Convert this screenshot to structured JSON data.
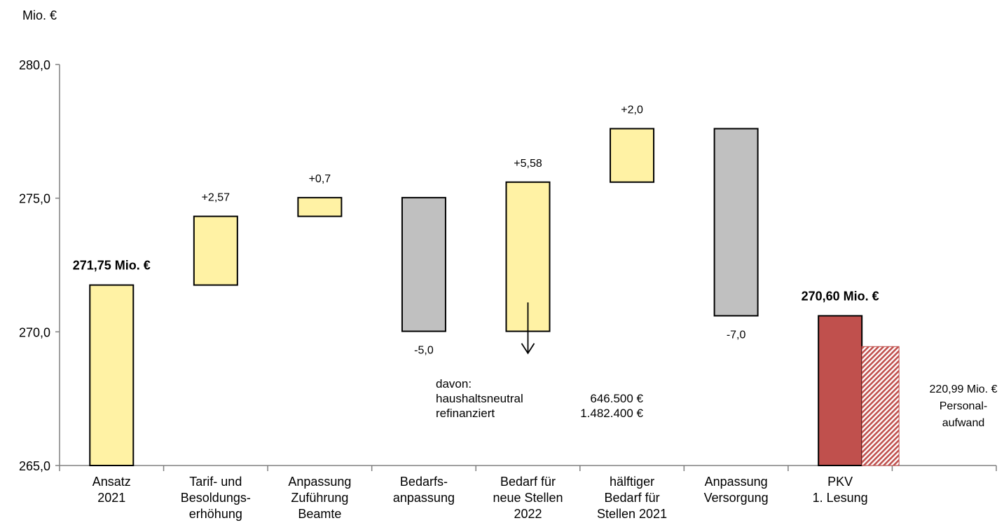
{
  "unit_label": "Mio. €",
  "chart_data": {
    "type": "bar",
    "subtype": "waterfall",
    "ylim": [
      265.0,
      280.0
    ],
    "yticks": [
      "265,0",
      "270,0",
      "275,0",
      "280,0"
    ],
    "ytick_values": [
      265,
      270,
      275,
      280
    ],
    "grid": false,
    "bars": [
      {
        "category": "Ansatz\n2021",
        "base": 265.0,
        "top": 271.75,
        "color": "#FFF2A4",
        "label": "271,75 Mio. €",
        "label_bold": true,
        "label_pos": "above"
      },
      {
        "category": "Tarif- und\nBesoldungs-\nerhöhung",
        "base": 271.75,
        "top": 274.32,
        "color": "#FFF2A4",
        "label": "+2,57",
        "label_bold": false,
        "label_pos": "above"
      },
      {
        "category": "Anpassung\nZuführung\nBeamte",
        "base": 274.32,
        "top": 275.02,
        "color": "#FFF2A4",
        "label": "+0,7",
        "label_bold": false,
        "label_pos": "above"
      },
      {
        "category": "Bedarfs-\nanpassung",
        "base": 270.02,
        "top": 275.02,
        "color": "#C0C0C0",
        "label": "-5,0",
        "label_bold": false,
        "label_pos": "below"
      },
      {
        "category": "Bedarf für\nneue Stellen\n2022",
        "base": 270.02,
        "top": 275.6,
        "color": "#FFF2A4",
        "label": "+5,58",
        "label_bold": false,
        "label_pos": "above"
      },
      {
        "category": "hälftiger\nBedarf für\nStellen 2021",
        "base": 275.6,
        "top": 277.6,
        "color": "#FFF2A4",
        "label": "+2,0",
        "label_bold": false,
        "label_pos": "above"
      },
      {
        "category": "Anpassung\nVersorgung",
        "base": 270.6,
        "top": 277.6,
        "color": "#C0C0C0",
        "label": "-7,0",
        "label_bold": false,
        "label_pos": "below"
      },
      {
        "category": "PKV\n1. Lesung",
        "base": 265.0,
        "top": 270.6,
        "color": "#C0504D",
        "label": "270,60 Mio. €",
        "label_bold": true,
        "label_pos": "above"
      }
    ],
    "extra_bar": {
      "base": 265.0,
      "top": 269.45,
      "color": "#C0504D",
      "pattern": "diagonal-hatch"
    },
    "annotation_arrow": {
      "category_index": 4,
      "from": 271.1,
      "to": 269.2
    }
  },
  "breakdown": {
    "lines": [
      "davon:",
      "haushaltsneutral",
      "refinanziert"
    ],
    "amounts": [
      "646.500 €",
      "1.482.400 €"
    ]
  },
  "side_note": {
    "lines": [
      "220,99 Mio. €",
      "Personal-",
      "aufwand"
    ]
  }
}
